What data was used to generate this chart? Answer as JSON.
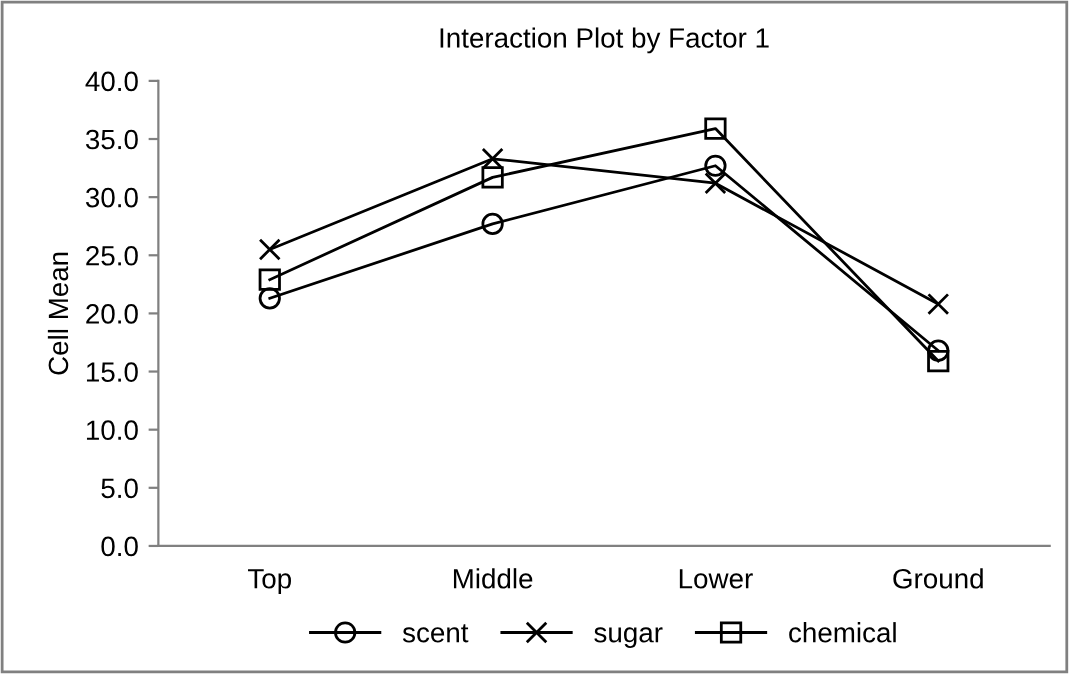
{
  "chart_data": {
    "type": "line",
    "title": "Interaction Plot by Factor 1",
    "ylabel": "Cell Mean",
    "categories": [
      "Top",
      "Middle",
      "Lower",
      "Ground"
    ],
    "series": [
      {
        "name": "scent",
        "color": "#000000",
        "marker": "circle",
        "values": [
          21.3,
          27.7,
          32.7,
          16.8
        ]
      },
      {
        "name": "sugar",
        "color": "#000000",
        "marker": "cross",
        "values": [
          25.5,
          33.3,
          31.2,
          20.8
        ]
      },
      {
        "name": "chemical",
        "color": "#000000",
        "marker": "square",
        "values": [
          22.9,
          31.7,
          35.9,
          15.9
        ]
      }
    ],
    "ylim": [
      0,
      40
    ],
    "yticks": [
      {
        "value": 0,
        "label": "0.0"
      },
      {
        "value": 5,
        "label": "5.0"
      },
      {
        "value": 10,
        "label": "10.0"
      },
      {
        "value": 15,
        "label": "15.0"
      },
      {
        "value": 20,
        "label": "20.0"
      },
      {
        "value": 25,
        "label": "25.0"
      },
      {
        "value": 30,
        "label": "30.0"
      },
      {
        "value": 35,
        "label": "35.0"
      },
      {
        "value": 40,
        "label": "40.0"
      }
    ],
    "grid": false,
    "legend": "bottom",
    "line_style": "solid"
  }
}
